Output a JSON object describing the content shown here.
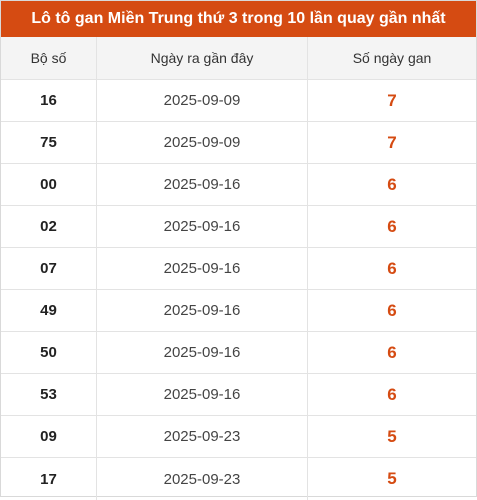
{
  "title": "Lô tô gan Miền Trung thứ 3 trong 10 lần quay gần nhất",
  "columns": {
    "number": "Bộ số",
    "last_date": "Ngày ra gần đây",
    "gap_days": "Số ngày gan"
  },
  "rows": [
    {
      "number": "16",
      "last_date": "2025-09-09",
      "gap_days": "7"
    },
    {
      "number": "75",
      "last_date": "2025-09-09",
      "gap_days": "7"
    },
    {
      "number": "00",
      "last_date": "2025-09-16",
      "gap_days": "6"
    },
    {
      "number": "02",
      "last_date": "2025-09-16",
      "gap_days": "6"
    },
    {
      "number": "07",
      "last_date": "2025-09-16",
      "gap_days": "6"
    },
    {
      "number": "49",
      "last_date": "2025-09-16",
      "gap_days": "6"
    },
    {
      "number": "50",
      "last_date": "2025-09-16",
      "gap_days": "6"
    },
    {
      "number": "53",
      "last_date": "2025-09-16",
      "gap_days": "6"
    },
    {
      "number": "09",
      "last_date": "2025-09-23",
      "gap_days": "5"
    },
    {
      "number": "17",
      "last_date": "2025-09-23",
      "gap_days": "5"
    }
  ],
  "colors": {
    "accent": "#d54b12",
    "header_bg": "#f4f4f4",
    "border": "#e3e3e3"
  }
}
